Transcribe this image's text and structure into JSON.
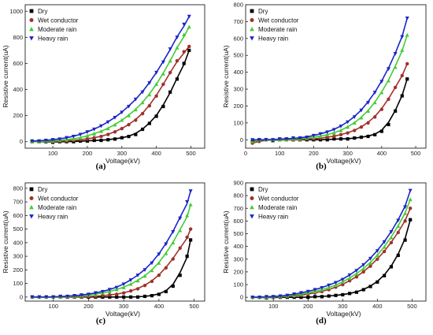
{
  "colors": {
    "Dry": "#000000",
    "Wet conductor": "#a0312a",
    "Moderate rain": "#44cc33",
    "Heavy rain": "#1a25c8"
  },
  "chart_data": [
    {
      "panel": "(a)",
      "type": "scatter",
      "xlabel": "Voltage(kV)",
      "ylabel": "Resistive current(uA)",
      "xlim": [
        20,
        540
      ],
      "ylim": [
        -50,
        1050
      ],
      "xticks": [
        100,
        200,
        300,
        400,
        500
      ],
      "yticks": [
        0,
        200,
        400,
        600,
        800,
        1000
      ],
      "legend_position": "top-left",
      "series": [
        {
          "name": "Dry",
          "marker": "square",
          "x": [
            40,
            60,
            80,
            100,
            120,
            140,
            160,
            180,
            200,
            220,
            240,
            260,
            280,
            300,
            320,
            340,
            360,
            380,
            400,
            420,
            440,
            460,
            480,
            495
          ],
          "y": [
            0,
            0,
            0,
            -5,
            0,
            0,
            0,
            5,
            5,
            10,
            10,
            15,
            20,
            30,
            40,
            55,
            95,
            140,
            195,
            270,
            380,
            480,
            600,
            700
          ]
        },
        {
          "name": "Wet conductor",
          "marker": "circle",
          "x": [
            40,
            60,
            80,
            100,
            120,
            140,
            160,
            180,
            200,
            220,
            240,
            260,
            280,
            300,
            320,
            340,
            360,
            380,
            400,
            420,
            440,
            460,
            480,
            495
          ],
          "y": [
            0,
            0,
            5,
            0,
            5,
            5,
            10,
            15,
            20,
            30,
            40,
            55,
            75,
            100,
            130,
            165,
            215,
            275,
            350,
            440,
            530,
            620,
            690,
            730
          ]
        },
        {
          "name": "Moderate rain",
          "marker": "triangle-up",
          "x": [
            40,
            60,
            80,
            100,
            120,
            140,
            160,
            180,
            200,
            220,
            240,
            260,
            280,
            300,
            320,
            340,
            360,
            380,
            400,
            420,
            440,
            460,
            480,
            495
          ],
          "y": [
            0,
            0,
            5,
            5,
            10,
            15,
            20,
            30,
            45,
            60,
            80,
            100,
            130,
            165,
            200,
            245,
            300,
            360,
            440,
            520,
            620,
            720,
            820,
            880
          ]
        },
        {
          "name": "Heavy rain",
          "marker": "triangle-down",
          "x": [
            40,
            60,
            80,
            100,
            120,
            140,
            160,
            180,
            200,
            220,
            240,
            260,
            280,
            300,
            320,
            340,
            360,
            380,
            400,
            420,
            440,
            460,
            480,
            495
          ],
          "y": [
            5,
            5,
            10,
            15,
            20,
            30,
            40,
            55,
            75,
            95,
            120,
            150,
            185,
            225,
            270,
            325,
            380,
            450,
            530,
            610,
            710,
            800,
            900,
            960
          ]
        }
      ]
    },
    {
      "panel": "(b)",
      "type": "scatter",
      "xlabel": "Voltage(kV)",
      "ylabel": "Resistive current(uA)",
      "xlim": [
        0,
        530
      ],
      "ylim": [
        -50,
        800
      ],
      "xticks": [
        0,
        100,
        200,
        300,
        400,
        500
      ],
      "yticks": [
        0,
        100,
        200,
        300,
        400,
        500,
        600,
        700,
        800
      ],
      "legend_position": "top-left",
      "series": [
        {
          "name": "Dry",
          "marker": "square",
          "x": [
            20,
            40,
            60,
            80,
            100,
            120,
            140,
            160,
            180,
            200,
            220,
            240,
            260,
            280,
            300,
            320,
            340,
            360,
            380,
            400,
            420,
            440,
            460,
            475
          ],
          "y": [
            -10,
            0,
            0,
            -5,
            0,
            0,
            0,
            0,
            0,
            0,
            0,
            0,
            5,
            5,
            5,
            10,
            15,
            20,
            30,
            50,
            90,
            170,
            260,
            360
          ]
        },
        {
          "name": "Wet conductor",
          "marker": "circle",
          "x": [
            20,
            40,
            60,
            80,
            100,
            120,
            140,
            160,
            180,
            200,
            220,
            240,
            260,
            280,
            300,
            320,
            340,
            360,
            380,
            400,
            420,
            440,
            460,
            475
          ],
          "y": [
            -20,
            -10,
            0,
            0,
            0,
            0,
            0,
            0,
            5,
            5,
            10,
            15,
            20,
            30,
            40,
            55,
            75,
            100,
            135,
            180,
            240,
            310,
            380,
            450
          ]
        },
        {
          "name": "Moderate rain",
          "marker": "triangle-up",
          "x": [
            20,
            40,
            60,
            80,
            100,
            120,
            140,
            160,
            180,
            200,
            220,
            240,
            260,
            280,
            300,
            320,
            340,
            360,
            380,
            400,
            420,
            440,
            460,
            475
          ],
          "y": [
            -10,
            0,
            0,
            0,
            0,
            0,
            5,
            5,
            10,
            15,
            20,
            30,
            40,
            55,
            75,
            100,
            130,
            170,
            220,
            280,
            350,
            430,
            530,
            620
          ]
        },
        {
          "name": "Heavy rain",
          "marker": "triangle-down",
          "x": [
            20,
            40,
            60,
            80,
            100,
            120,
            140,
            160,
            180,
            200,
            220,
            240,
            260,
            280,
            300,
            320,
            340,
            360,
            380,
            400,
            420,
            440,
            460,
            475
          ],
          "y": [
            0,
            0,
            0,
            0,
            5,
            5,
            10,
            10,
            15,
            25,
            35,
            45,
            60,
            80,
            105,
            135,
            175,
            220,
            280,
            345,
            420,
            510,
            610,
            720
          ]
        }
      ]
    },
    {
      "panel": "(c)",
      "type": "scatter",
      "xlabel": "Voltage(kV)",
      "ylabel": "Resistive current(uA)",
      "xlim": [
        20,
        530
      ],
      "ylim": [
        -30,
        840
      ],
      "xticks": [
        100,
        200,
        300,
        400,
        500
      ],
      "yticks": [
        0,
        100,
        200,
        300,
        400,
        500,
        600,
        700,
        800
      ],
      "legend_position": "top-left",
      "series": [
        {
          "name": "Dry",
          "marker": "square",
          "x": [
            40,
            60,
            80,
            100,
            120,
            140,
            160,
            180,
            200,
            220,
            240,
            260,
            280,
            300,
            320,
            340,
            360,
            380,
            400,
            420,
            440,
            460,
            480,
            490
          ],
          "y": [
            0,
            0,
            0,
            0,
            0,
            0,
            0,
            0,
            0,
            0,
            0,
            0,
            0,
            0,
            0,
            0,
            5,
            10,
            20,
            40,
            80,
            160,
            300,
            420
          ]
        },
        {
          "name": "Wet conductor",
          "marker": "circle",
          "x": [
            40,
            60,
            80,
            100,
            120,
            140,
            160,
            180,
            200,
            220,
            240,
            260,
            280,
            300,
            320,
            340,
            360,
            380,
            400,
            420,
            440,
            460,
            480,
            490
          ],
          "y": [
            0,
            0,
            0,
            0,
            0,
            0,
            0,
            0,
            5,
            5,
            10,
            15,
            20,
            30,
            45,
            60,
            85,
            115,
            160,
            215,
            280,
            360,
            440,
            500
          ]
        },
        {
          "name": "Moderate rain",
          "marker": "triangle-up",
          "x": [
            40,
            60,
            80,
            100,
            120,
            140,
            160,
            180,
            200,
            220,
            240,
            260,
            280,
            300,
            320,
            340,
            360,
            380,
            400,
            420,
            440,
            460,
            480,
            490
          ],
          "y": [
            0,
            0,
            0,
            0,
            0,
            5,
            5,
            10,
            15,
            20,
            30,
            40,
            55,
            70,
            95,
            120,
            155,
            195,
            250,
            320,
            400,
            490,
            600,
            680
          ]
        },
        {
          "name": "Heavy rain",
          "marker": "triangle-down",
          "x": [
            40,
            60,
            80,
            100,
            120,
            140,
            160,
            180,
            200,
            220,
            240,
            260,
            280,
            300,
            320,
            340,
            360,
            380,
            400,
            420,
            440,
            460,
            480,
            490
          ],
          "y": [
            0,
            0,
            0,
            0,
            5,
            5,
            10,
            15,
            20,
            30,
            40,
            55,
            70,
            95,
            125,
            160,
            200,
            250,
            315,
            390,
            480,
            580,
            700,
            780
          ]
        }
      ]
    },
    {
      "panel": "(d)",
      "type": "scatter",
      "xlabel": "Voltage(kV)",
      "ylabel": "Resistive current(uA)",
      "xlim": [
        20,
        540
      ],
      "ylim": [
        -30,
        900
      ],
      "xticks": [
        100,
        200,
        300,
        400,
        500
      ],
      "yticks": [
        0,
        100,
        200,
        300,
        400,
        500,
        600,
        700,
        800,
        900
      ],
      "legend_position": "top-left",
      "series": [
        {
          "name": "Dry",
          "marker": "square",
          "x": [
            40,
            60,
            80,
            100,
            120,
            140,
            160,
            180,
            200,
            220,
            240,
            260,
            280,
            300,
            320,
            340,
            360,
            380,
            400,
            420,
            440,
            460,
            480,
            495
          ],
          "y": [
            0,
            0,
            -5,
            0,
            0,
            0,
            0,
            0,
            0,
            5,
            5,
            10,
            15,
            20,
            30,
            40,
            60,
            85,
            120,
            170,
            240,
            330,
            450,
            610
          ]
        },
        {
          "name": "Wet conductor",
          "marker": "circle",
          "x": [
            40,
            60,
            80,
            100,
            120,
            140,
            160,
            180,
            200,
            220,
            240,
            260,
            280,
            300,
            320,
            340,
            360,
            380,
            400,
            420,
            440,
            460,
            480,
            495
          ],
          "y": [
            0,
            0,
            0,
            0,
            5,
            5,
            10,
            15,
            25,
            35,
            45,
            60,
            80,
            100,
            130,
            160,
            200,
            245,
            300,
            360,
            430,
            510,
            600,
            700
          ]
        },
        {
          "name": "Moderate rain",
          "marker": "triangle-up",
          "x": [
            40,
            60,
            80,
            100,
            120,
            140,
            160,
            180,
            200,
            220,
            240,
            260,
            280,
            300,
            320,
            340,
            360,
            380,
            400,
            420,
            440,
            460,
            480,
            495
          ],
          "y": [
            0,
            0,
            0,
            5,
            5,
            10,
            15,
            25,
            35,
            45,
            60,
            75,
            95,
            120,
            150,
            185,
            225,
            270,
            330,
            395,
            470,
            560,
            660,
            770
          ]
        },
        {
          "name": "Heavy rain",
          "marker": "triangle-down",
          "x": [
            40,
            60,
            80,
            100,
            120,
            140,
            160,
            180,
            200,
            220,
            240,
            260,
            280,
            300,
            320,
            340,
            360,
            380,
            400,
            420,
            440,
            460,
            480,
            495
          ],
          "y": [
            0,
            0,
            5,
            5,
            10,
            15,
            25,
            35,
            45,
            60,
            75,
            95,
            115,
            140,
            175,
            210,
            255,
            305,
            365,
            435,
            515,
            605,
            710,
            840
          ]
        }
      ]
    }
  ]
}
